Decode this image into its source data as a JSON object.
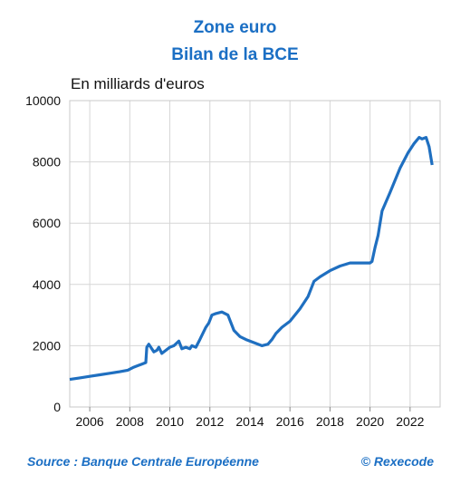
{
  "chart_data": {
    "type": "line",
    "title": "Zone euro",
    "subtitle": "Bilan de la BCE",
    "ylabel": "En milliards d'euros",
    "xlim": [
      2005.0,
      2023.5
    ],
    "ylim": [
      0,
      10000
    ],
    "yticks": [
      0,
      2000,
      4000,
      6000,
      8000,
      10000
    ],
    "xticks": [
      2006,
      2008,
      2010,
      2012,
      2014,
      2016,
      2018,
      2020,
      2022
    ],
    "grid": true,
    "color": "#1f6fc0",
    "series": [
      {
        "x": [
          2005.0,
          2005.5,
          2006.0,
          2006.5,
          2007.0,
          2007.5,
          2007.9,
          2008.2,
          2008.4,
          2008.6,
          2008.8,
          2008.85,
          2008.95,
          2009.1,
          2009.2,
          2009.35,
          2009.45,
          2009.6,
          2009.8,
          2010.0,
          2010.2,
          2010.45,
          2010.6,
          2010.8,
          2011.0,
          2011.1,
          2011.3,
          2011.5,
          2011.8,
          2011.95,
          2012.1,
          2012.3,
          2012.6,
          2012.9,
          2013.2,
          2013.5,
          2013.8,
          2014.2,
          2014.6,
          2014.9,
          2015.1,
          2015.3,
          2015.6,
          2016.0,
          2016.5,
          2016.9,
          2017.2,
          2017.5,
          2018.0,
          2018.5,
          2019.0,
          2019.5,
          2020.0,
          2020.1,
          2020.25,
          2020.4,
          2020.6,
          2021.0,
          2021.5,
          2021.9,
          2022.2,
          2022.45,
          2022.6,
          2022.8,
          2022.95,
          2023.1
        ],
        "y": [
          900,
          950,
          1000,
          1050,
          1100,
          1150,
          1200,
          1300,
          1350,
          1400,
          1450,
          1950,
          2050,
          1900,
          1800,
          1850,
          1950,
          1750,
          1850,
          1950,
          2000,
          2150,
          1900,
          1950,
          1900,
          2000,
          1950,
          2200,
          2600,
          2750,
          3000,
          3050,
          3100,
          3000,
          2500,
          2300,
          2200,
          2100,
          2000,
          2050,
          2200,
          2400,
          2600,
          2800,
          3200,
          3600,
          4100,
          4250,
          4450,
          4600,
          4700,
          4700,
          4700,
          4750,
          5200,
          5600,
          6400,
          7000,
          7800,
          8300,
          8600,
          8800,
          8750,
          8800,
          8500,
          7900
        ]
      }
    ]
  },
  "source": "Source : Banque Centrale Européenne",
  "copyright": "© Rexecode"
}
